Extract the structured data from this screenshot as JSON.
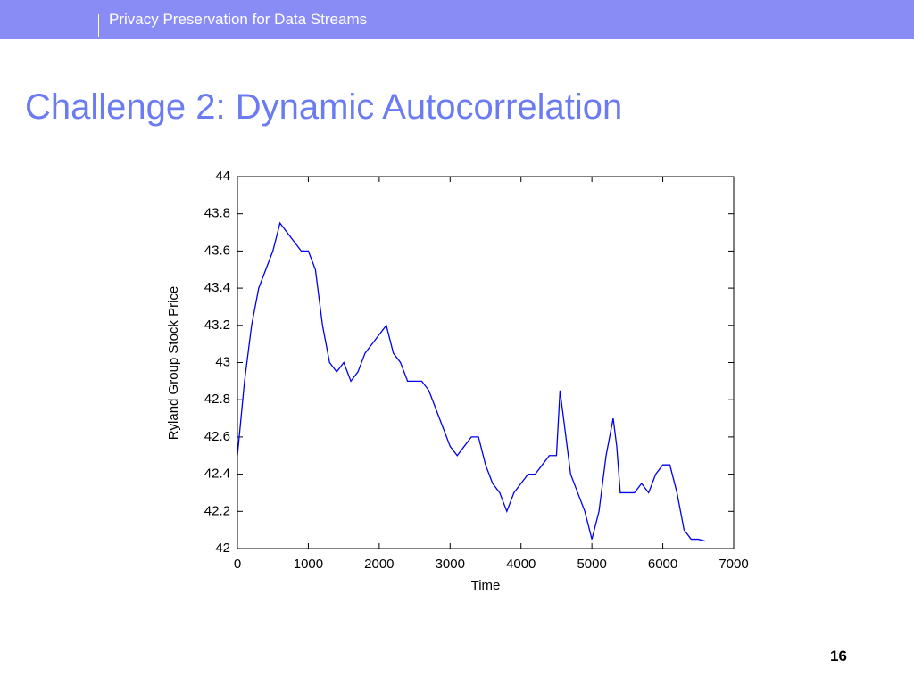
{
  "header": {
    "text": "Privacy Preservation for Data Streams"
  },
  "title": "Challenge 2: Dynamic Autocorrelation",
  "page_number": "16",
  "chart_data": {
    "type": "line",
    "x_label": "Time",
    "y_label": "Ryland Group Stock Price",
    "x": [
      0,
      100,
      200,
      300,
      400,
      500,
      600,
      700,
      800,
      900,
      1000,
      1100,
      1200,
      1300,
      1400,
      1500,
      1600,
      1700,
      1800,
      1900,
      2000,
      2100,
      2200,
      2300,
      2400,
      2500,
      2600,
      2700,
      2800,
      2900,
      3000,
      3100,
      3200,
      3300,
      3400,
      3500,
      3600,
      3700,
      3800,
      3900,
      4000,
      4100,
      4200,
      4300,
      4400,
      4500,
      4550,
      4600,
      4700,
      4800,
      4900,
      5000,
      5100,
      5200,
      5300,
      5350,
      5400,
      5500,
      5600,
      5700,
      5800,
      5900,
      6000,
      6100,
      6200,
      6300,
      6400,
      6500,
      6600
    ],
    "series": [
      {
        "name": "Ryland Group Stock Price",
        "color": "#0000ee",
        "values": [
          42.5,
          42.9,
          43.2,
          43.4,
          43.5,
          43.6,
          43.75,
          43.7,
          43.65,
          43.6,
          43.6,
          43.5,
          43.2,
          43.0,
          42.95,
          43.0,
          42.9,
          42.95,
          43.05,
          43.1,
          43.15,
          43.2,
          43.05,
          43.0,
          42.9,
          42.9,
          42.9,
          42.85,
          42.75,
          42.65,
          42.55,
          42.5,
          42.55,
          42.6,
          42.6,
          42.45,
          42.35,
          42.3,
          42.2,
          42.3,
          42.35,
          42.4,
          42.4,
          42.45,
          42.5,
          42.5,
          42.85,
          42.7,
          42.4,
          42.3,
          42.2,
          42.05,
          42.2,
          42.5,
          42.7,
          42.55,
          42.3,
          42.3,
          42.3,
          42.35,
          42.3,
          42.4,
          42.45,
          42.45,
          42.3,
          42.1,
          42.05,
          42.05,
          42.04
        ]
      }
    ],
    "xlim": [
      0,
      7000
    ],
    "xticks": [
      0,
      1000,
      2000,
      3000,
      4000,
      5000,
      6000,
      7000
    ],
    "ylim": [
      42,
      44
    ],
    "yticks": [
      42,
      42.2,
      42.4,
      42.6,
      42.8,
      43,
      43.2,
      43.4,
      43.6,
      43.8,
      44
    ]
  }
}
